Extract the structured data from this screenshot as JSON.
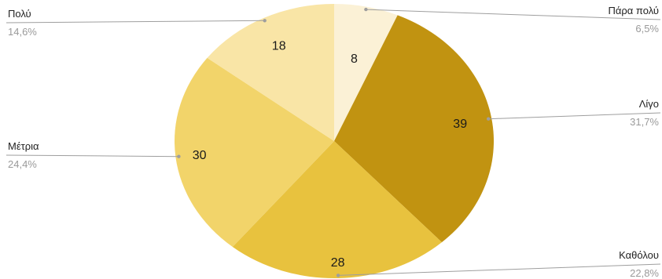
{
  "chart_data": {
    "type": "pie",
    "title": "",
    "slices": [
      {
        "label": "Πάρα πολύ",
        "value": 8,
        "percent": "6,5%",
        "color": "#fbf1d6"
      },
      {
        "label": "Λίγο",
        "value": 39,
        "percent": "31,7%",
        "color": "#c19311"
      },
      {
        "label": "Καθόλου",
        "value": 28,
        "percent": "22,8%",
        "color": "#e8c23e"
      },
      {
        "label": "Μέτρια",
        "value": 30,
        "percent": "24,4%",
        "color": "#f2d46a"
      },
      {
        "label": "Πολύ",
        "value": 18,
        "percent": "14,6%",
        "color": "#f9e5a6"
      }
    ],
    "start_angle": "top",
    "direction": "clockwise",
    "legend": "none",
    "labels": "outside with leader lines"
  }
}
